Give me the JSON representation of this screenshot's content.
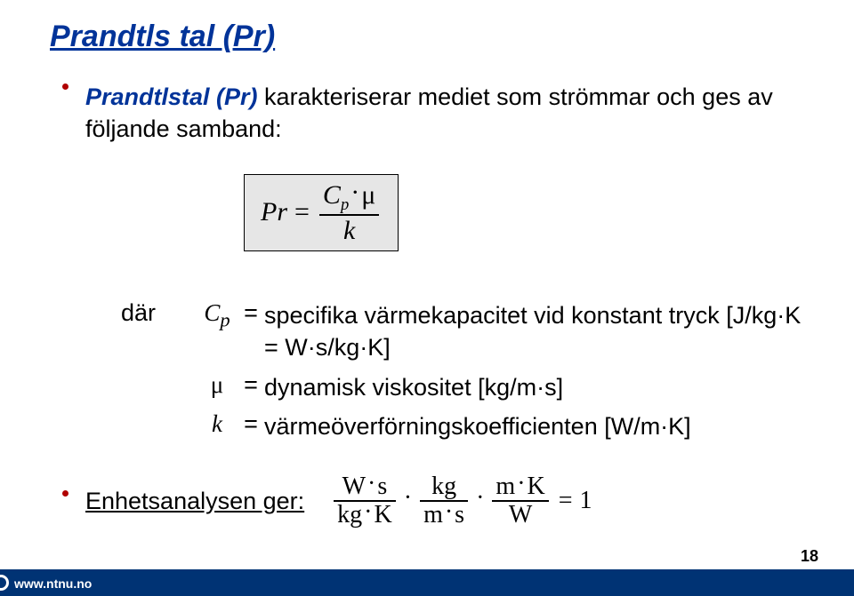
{
  "title": "Prandtls tal (Pr)",
  "bullet1_prefix_em": "Prandtlstal (Pr)",
  "bullet1_rest": " karakteriserar mediet som strömmar och ges av följande samband:",
  "formula": {
    "lhs": "Pr",
    "eq": "=",
    "num_C": "C",
    "num_sub": "p",
    "num_mu": "μ",
    "den": "k"
  },
  "def_label": "där",
  "defs": [
    {
      "sym_html": "C<sub>p</sub>",
      "eq": "=",
      "text": "specifika värmekapacitet vid konstant tryck [J/kg·K = W·s/kg·K]"
    },
    {
      "sym_html": "μ",
      "eq": "=",
      "text": "dynamisk viskositet [kg/m·s]"
    },
    {
      "sym_html": "k",
      "eq": "=",
      "text": "värmeöverförningskoefficienten [W/m·K]"
    }
  ],
  "unit_label": "Enhetsanalysen ger:",
  "unit_eq_rhs": "1",
  "footer_url": "www.ntnu.no",
  "page_number": "18"
}
